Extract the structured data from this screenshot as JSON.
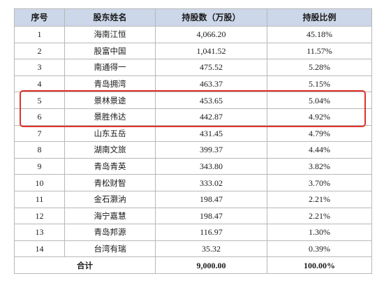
{
  "table": {
    "headers": [
      "序号",
      "股东姓名",
      "持股数（万股）",
      "持股比例"
    ],
    "rows": [
      [
        "1",
        "海南江恒",
        "4,066.20",
        "45.18%"
      ],
      [
        "2",
        "股富中国",
        "1,041.52",
        "11.57%"
      ],
      [
        "3",
        "南通得一",
        "475.52",
        "5.28%"
      ],
      [
        "4",
        "青岛拥湾",
        "463.37",
        "5.15%"
      ],
      [
        "5",
        "景林景途",
        "453.65",
        "5.04%"
      ],
      [
        "6",
        "景胜伟达",
        "442.87",
        "4.92%"
      ],
      [
        "7",
        "山东五岳",
        "431.45",
        "4.79%"
      ],
      [
        "8",
        "湖南文旅",
        "399.37",
        "4.44%"
      ],
      [
        "9",
        "青岛青英",
        "343.80",
        "3.82%"
      ],
      [
        "10",
        "青松财智",
        "333.02",
        "3.70%"
      ],
      [
        "11",
        "金石灏汭",
        "198.47",
        "2.21%"
      ],
      [
        "12",
        "海宁嘉慧",
        "198.47",
        "2.21%"
      ],
      [
        "13",
        "青岛邦源",
        "116.97",
        "1.30%"
      ],
      [
        "14",
        "台湾有瑞",
        "35.32",
        "0.39%"
      ]
    ],
    "total": {
      "label": "合计",
      "shares": "9,000.00",
      "ratio": "100.00%"
    },
    "highlighted_rows": [
      "5",
      "6"
    ],
    "colors": {
      "header_bg": "#ccd7e9",
      "highlight_border": "#e0322a",
      "grid": "#b8b8b8"
    }
  }
}
